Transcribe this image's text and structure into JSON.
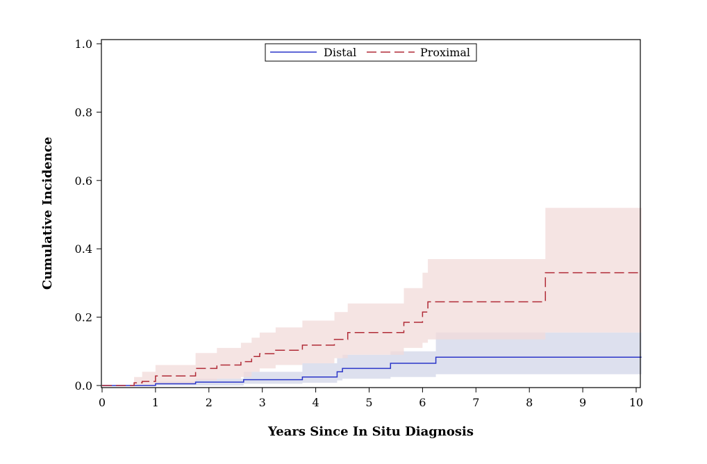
{
  "chart_data": {
    "type": "line",
    "xlabel": "Years Since In Situ Diagnosis",
    "ylabel": "Cumulative Incidence",
    "xlim": [
      0,
      10.1
    ],
    "ylim": [
      0,
      1.0
    ],
    "x_ticks": [
      "0",
      "1",
      "2",
      "3",
      "4",
      "5",
      "6",
      "7",
      "8",
      "9",
      "10"
    ],
    "y_ticks": [
      "0.0",
      "0.2",
      "0.4",
      "0.6",
      "0.8",
      "1.0"
    ],
    "grid": false,
    "legend_position": "top-center",
    "series": [
      {
        "name": "Distal",
        "color": "#2a35c8",
        "band_color": "#dde0ee",
        "line_style": "solid",
        "steps": [
          [
            0,
            0.0
          ],
          [
            1.0,
            0.005
          ],
          [
            1.75,
            0.01
          ],
          [
            2.65,
            0.017
          ],
          [
            3.75,
            0.025
          ],
          [
            4.4,
            0.04
          ],
          [
            4.5,
            0.05
          ],
          [
            5.4,
            0.065
          ],
          [
            6.25,
            0.083
          ],
          [
            10.1,
            0.083
          ]
        ],
        "band": [
          [
            0,
            0.0,
            0.0
          ],
          [
            1.0,
            0.0,
            0.012
          ],
          [
            1.75,
            0.0,
            0.02
          ],
          [
            2.65,
            0.005,
            0.04
          ],
          [
            3.75,
            0.008,
            0.065
          ],
          [
            4.4,
            0.015,
            0.08
          ],
          [
            4.5,
            0.02,
            0.09
          ],
          [
            5.4,
            0.025,
            0.1
          ],
          [
            6.25,
            0.033,
            0.155
          ],
          [
            10.1,
            0.033,
            0.155
          ]
        ]
      },
      {
        "name": "Proximal",
        "color": "#b02a36",
        "band_color": "#f1dbda",
        "line_style": "dashed",
        "steps": [
          [
            0,
            0.0
          ],
          [
            0.6,
            0.008
          ],
          [
            0.75,
            0.012
          ],
          [
            1.0,
            0.028
          ],
          [
            1.75,
            0.05
          ],
          [
            2.15,
            0.06
          ],
          [
            2.6,
            0.07
          ],
          [
            2.8,
            0.085
          ],
          [
            2.95,
            0.093
          ],
          [
            3.25,
            0.103
          ],
          [
            3.75,
            0.118
          ],
          [
            4.35,
            0.135
          ],
          [
            4.6,
            0.155
          ],
          [
            5.65,
            0.185
          ],
          [
            6.0,
            0.215
          ],
          [
            6.1,
            0.245
          ],
          [
            8.3,
            0.33
          ],
          [
            10.1,
            0.33
          ]
        ],
        "band": [
          [
            0,
            0.0,
            0.0
          ],
          [
            0.6,
            0.0,
            0.025
          ],
          [
            0.75,
            0.0,
            0.04
          ],
          [
            1.0,
            0.005,
            0.06
          ],
          [
            1.75,
            0.015,
            0.095
          ],
          [
            2.15,
            0.02,
            0.11
          ],
          [
            2.6,
            0.025,
            0.125
          ],
          [
            2.8,
            0.04,
            0.14
          ],
          [
            2.95,
            0.05,
            0.155
          ],
          [
            3.25,
            0.06,
            0.17
          ],
          [
            3.75,
            0.065,
            0.19
          ],
          [
            4.35,
            0.08,
            0.215
          ],
          [
            4.6,
            0.09,
            0.24
          ],
          [
            5.65,
            0.11,
            0.285
          ],
          [
            6.0,
            0.125,
            0.33
          ],
          [
            6.1,
            0.135,
            0.37
          ],
          [
            8.3,
            0.155,
            0.52
          ],
          [
            10.1,
            0.155,
            0.52
          ]
        ]
      }
    ]
  }
}
